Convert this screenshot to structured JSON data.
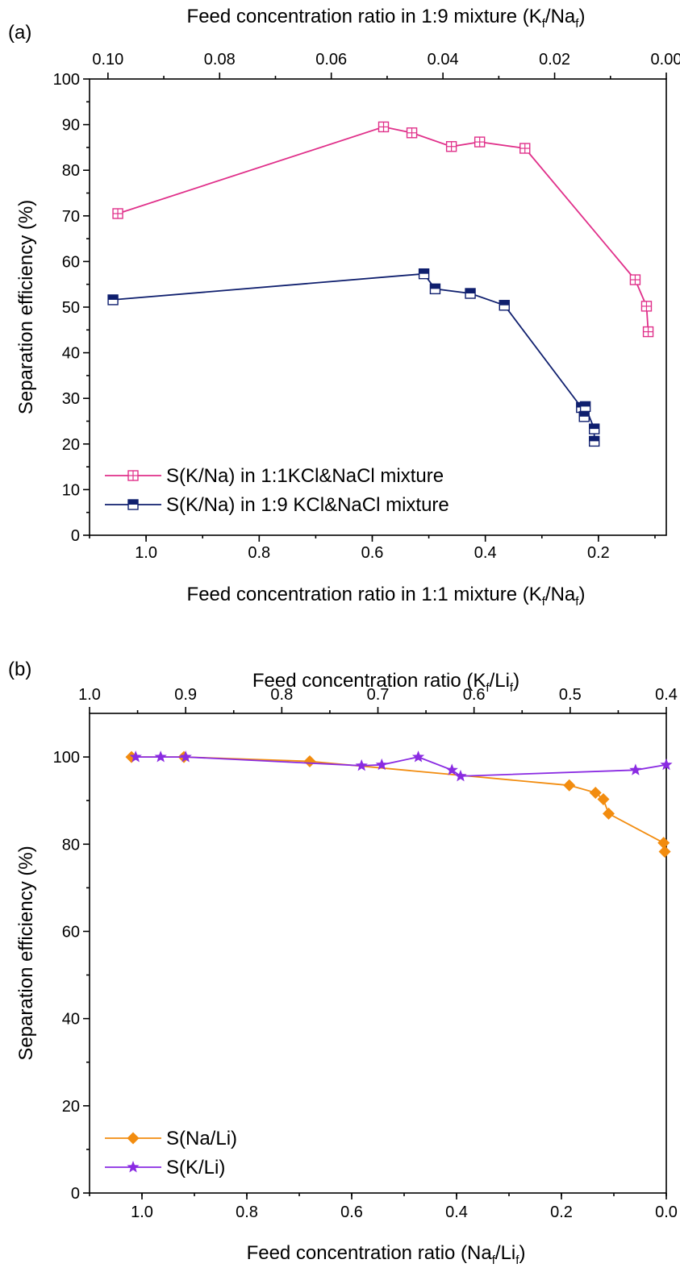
{
  "chart_data": [
    {
      "panel_label": "(a)",
      "type": "line",
      "xlabel": "Feed concentration ratio in 1:1 mixture (K",
      "xlabel_sub": [
        "f",
        "/Na",
        "f",
        ")"
      ],
      "x2label": "Feed concentration ratio in 1:9 mixture (K",
      "x2label_sub": [
        "f",
        "/Na",
        "f",
        ")"
      ],
      "ylabel": "Separation efficiency (%)",
      "xlim": [
        1.1,
        0.08
      ],
      "x_reversed": true,
      "x2lim": [
        0.1033,
        0.0
      ],
      "ylim": [
        0,
        100
      ],
      "xticks": [
        1.0,
        0.8,
        0.6,
        0.4,
        0.2
      ],
      "xtick_labels": [
        "1.0",
        "0.8",
        "0.6",
        "0.4",
        "0.2"
      ],
      "x2ticks": [
        0.1,
        0.08,
        0.06,
        0.04,
        0.02,
        0.0
      ],
      "x2tick_labels": [
        "0.10",
        "0.08",
        "0.06",
        "0.04",
        "0.02",
        "0.00"
      ],
      "yticks": [
        0,
        10,
        20,
        30,
        40,
        50,
        60,
        70,
        80,
        90,
        100
      ],
      "ytick_labels": [
        "0",
        "10",
        "20",
        "30",
        "40",
        "50",
        "60",
        "70",
        "80",
        "90",
        "100"
      ],
      "legend_position": "bottom-left",
      "series": [
        {
          "name": "S(K/Na) in 1:1KCl&NaCl mixture",
          "axis": "bottom",
          "color": "#e0308a",
          "marker": "square-cross",
          "x": [
            1.05,
            0.58,
            0.53,
            0.46,
            0.41,
            0.33,
            0.135,
            0.115,
            0.112
          ],
          "y": [
            70.5,
            89.5,
            88.2,
            85.2,
            86.2,
            84.8,
            56.0,
            50.2,
            44.6
          ]
        },
        {
          "name": "S(K/Na) in 1:9 KCl&NaCl mixture",
          "axis": "top",
          "color": "#0f1f6e",
          "marker": "square-half",
          "x": [
            0.0991,
            0.0434,
            0.0414,
            0.0351,
            0.029,
            0.0152,
            0.0147,
            0.0145,
            0.0129,
            0.0129
          ],
          "y": [
            51.6,
            57.3,
            54.0,
            53.0,
            50.4,
            28.0,
            26.0,
            28.2,
            23.3,
            20.6
          ]
        }
      ]
    },
    {
      "panel_label": "(b)",
      "type": "line",
      "xlabel": "Feed concentration ratio (Na",
      "xlabel_sub": [
        "f",
        "/Li",
        "f",
        ")"
      ],
      "x2label": "Feed concentration ratio (K",
      "x2label_sub": [
        "f",
        "/Li",
        "f",
        ")"
      ],
      "ylabel": "Separation efficiency (%)",
      "xlim": [
        1.1,
        0.0
      ],
      "x_reversed": true,
      "x2lim": [
        1.0,
        0.4
      ],
      "ylim": [
        0,
        110
      ],
      "xticks": [
        1.0,
        0.8,
        0.6,
        0.4,
        0.2,
        0.0
      ],
      "xtick_labels": [
        "1.0",
        "0.8",
        "0.6",
        "0.4",
        "0.2",
        "0.0"
      ],
      "x2ticks": [
        1.0,
        0.9,
        0.8,
        0.7,
        0.6,
        0.5,
        0.4
      ],
      "x2tick_labels": [
        "1.0",
        "0.9",
        "0.8",
        "0.7",
        "0.6",
        "0.5",
        "0.4"
      ],
      "yticks": [
        0,
        20,
        40,
        60,
        80,
        100
      ],
      "ytick_labels": [
        "0",
        "20",
        "40",
        "60",
        "80",
        "100"
      ],
      "legend_position": "bottom-left",
      "series": [
        {
          "name": "S(Na/Li)",
          "axis": "bottom",
          "color": "#f28c0f",
          "marker": "diamond",
          "x": [
            1.02,
            0.92,
            0.68,
            0.185,
            0.135,
            0.12,
            0.11,
            0.005,
            0.003
          ],
          "y": [
            100,
            100,
            99.0,
            93.5,
            91.8,
            90.3,
            87.0,
            80.3,
            78.3
          ]
        },
        {
          "name": "S(K/Li)",
          "axis": "top",
          "color": "#8a2be2",
          "marker": "star",
          "x": [
            0.952,
            0.926,
            0.9,
            0.717,
            0.696,
            0.658,
            0.623,
            0.614,
            0.432,
            0.4
          ],
          "y": [
            100,
            100,
            100,
            98.0,
            98.2,
            100,
            97.0,
            95.6,
            97.0,
            98.2
          ]
        }
      ]
    }
  ]
}
